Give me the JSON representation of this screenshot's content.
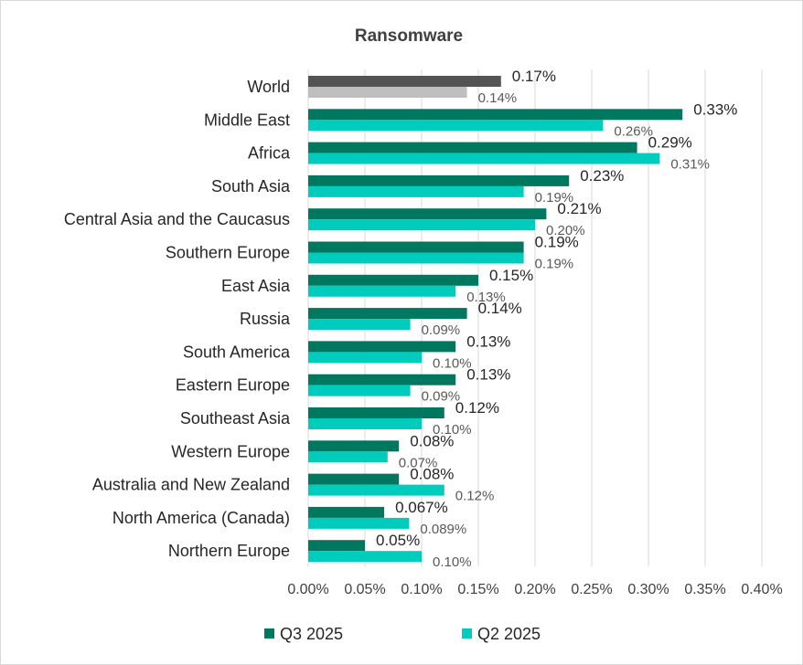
{
  "chart_data": {
    "type": "bar",
    "orientation": "horizontal",
    "title": "Ransomware",
    "categories": [
      "World",
      "Middle East",
      "Africa",
      "South Asia",
      "Central Asia and the Caucasus",
      "Southern Europe",
      "East Asia",
      "Russia",
      "South America",
      "Eastern Europe",
      "Southeast Asia",
      "Western Europe",
      "Australia and New Zealand",
      "North America (Canada)",
      "Northern Europe"
    ],
    "series": [
      {
        "name": "Q3 2025",
        "color": "#00775f",
        "world_color": "#545454",
        "values": [
          0.17,
          0.33,
          0.29,
          0.23,
          0.21,
          0.19,
          0.15,
          0.14,
          0.13,
          0.13,
          0.12,
          0.08,
          0.08,
          0.067,
          0.05
        ],
        "labels": [
          "0.17%",
          "0.33%",
          "0.29%",
          "0.23%",
          "0.21%",
          "0.19%",
          "0.15%",
          "0.14%",
          "0.13%",
          "0.13%",
          "0.12%",
          "0.08%",
          "0.08%",
          "0.067%",
          "0.05%"
        ]
      },
      {
        "name": "Q2 2025",
        "color": "#00ccbe",
        "world_color": "#bfbfbf",
        "values": [
          0.14,
          0.26,
          0.31,
          0.19,
          0.2,
          0.19,
          0.13,
          0.09,
          0.1,
          0.09,
          0.1,
          0.07,
          0.12,
          0.089,
          0.1
        ],
        "labels": [
          "0.14%",
          "0.26%",
          "0.31%",
          "0.19%",
          "0.20%",
          "0.19%",
          "0.13%",
          "0.09%",
          "0.10%",
          "0.09%",
          "0.10%",
          "0.07%",
          "0.12%",
          "0.089%",
          "0.10%"
        ]
      }
    ],
    "xlim": [
      0,
      0.4
    ],
    "xticks": [
      0,
      0.05,
      0.1,
      0.15,
      0.2,
      0.25,
      0.3,
      0.35,
      0.4
    ],
    "xtick_labels": [
      "0.00%",
      "0.05%",
      "0.10%",
      "0.15%",
      "0.20%",
      "0.25%",
      "0.30%",
      "0.35%",
      "0.40%"
    ],
    "grid": "vertical",
    "legend_position": "bottom"
  }
}
